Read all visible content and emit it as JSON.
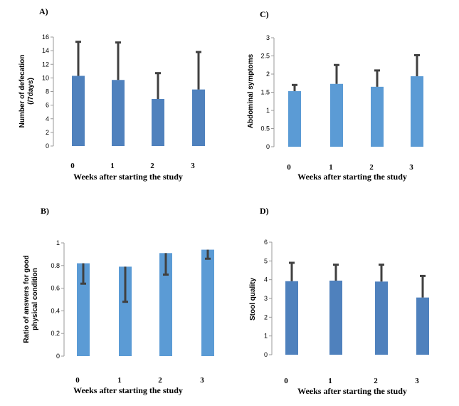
{
  "chart_data": [
    {
      "panel": "A)",
      "type": "bar",
      "categories": [
        "0",
        "1",
        "2",
        "3"
      ],
      "values": [
        10.3,
        9.7,
        6.9,
        8.3
      ],
      "error_upper": [
        15.3,
        15.2,
        10.7,
        13.8
      ],
      "ylim": [
        0,
        16
      ],
      "yticks": [
        "0",
        "2",
        "4",
        "6",
        "8",
        "10",
        "12",
        "14",
        "16"
      ],
      "ylabel": [
        "Number of defecation",
        "(/7days)"
      ],
      "xlabel": "Weeks after starting the study",
      "bar_color": "#4f81bd",
      "grid": false
    },
    {
      "panel": "C)",
      "type": "bar",
      "categories": [
        "0",
        "1",
        "2",
        "3"
      ],
      "values": [
        1.53,
        1.73,
        1.65,
        1.94
      ],
      "error_upper": [
        1.7,
        2.25,
        2.1,
        2.52
      ],
      "ylim": [
        0,
        3
      ],
      "yticks": [
        "0",
        "0.5",
        "1",
        "1.5",
        "2",
        "2.5",
        "3"
      ],
      "ylabel": [
        "Abdominal symptoms"
      ],
      "xlabel": "Weeks after starting the study",
      "bar_color": "#5b9bd5",
      "grid": false
    },
    {
      "panel": "B)",
      "type": "bar",
      "categories": [
        "0",
        "1",
        "2",
        "3"
      ],
      "values": [
        0.82,
        0.79,
        0.91,
        0.94
      ],
      "error_lower": [
        0.64,
        0.48,
        0.72,
        0.86
      ],
      "ylim": [
        0,
        1
      ],
      "yticks": [
        "0",
        "0.2",
        "0.4",
        "0.6",
        "0.8",
        "1"
      ],
      "ylabel": [
        "Ratio of answers for good",
        "physical condition"
      ],
      "xlabel": "Weeks after starting the study",
      "bar_color": "#5b9bd5",
      "grid": false
    },
    {
      "panel": "D)",
      "type": "bar",
      "categories": [
        "0",
        "1",
        "2",
        "3"
      ],
      "values": [
        3.92,
        3.95,
        3.9,
        3.05
      ],
      "error_upper": [
        4.9,
        4.8,
        4.8,
        4.2
      ],
      "ylim": [
        0,
        6
      ],
      "yticks": [
        "0",
        "1",
        "2",
        "3",
        "4",
        "5",
        "6"
      ],
      "ylabel": [
        "Stool quality"
      ],
      "xlabel": "Weeks after starting the study",
      "bar_color": "#4f81bd",
      "grid": false
    }
  ]
}
